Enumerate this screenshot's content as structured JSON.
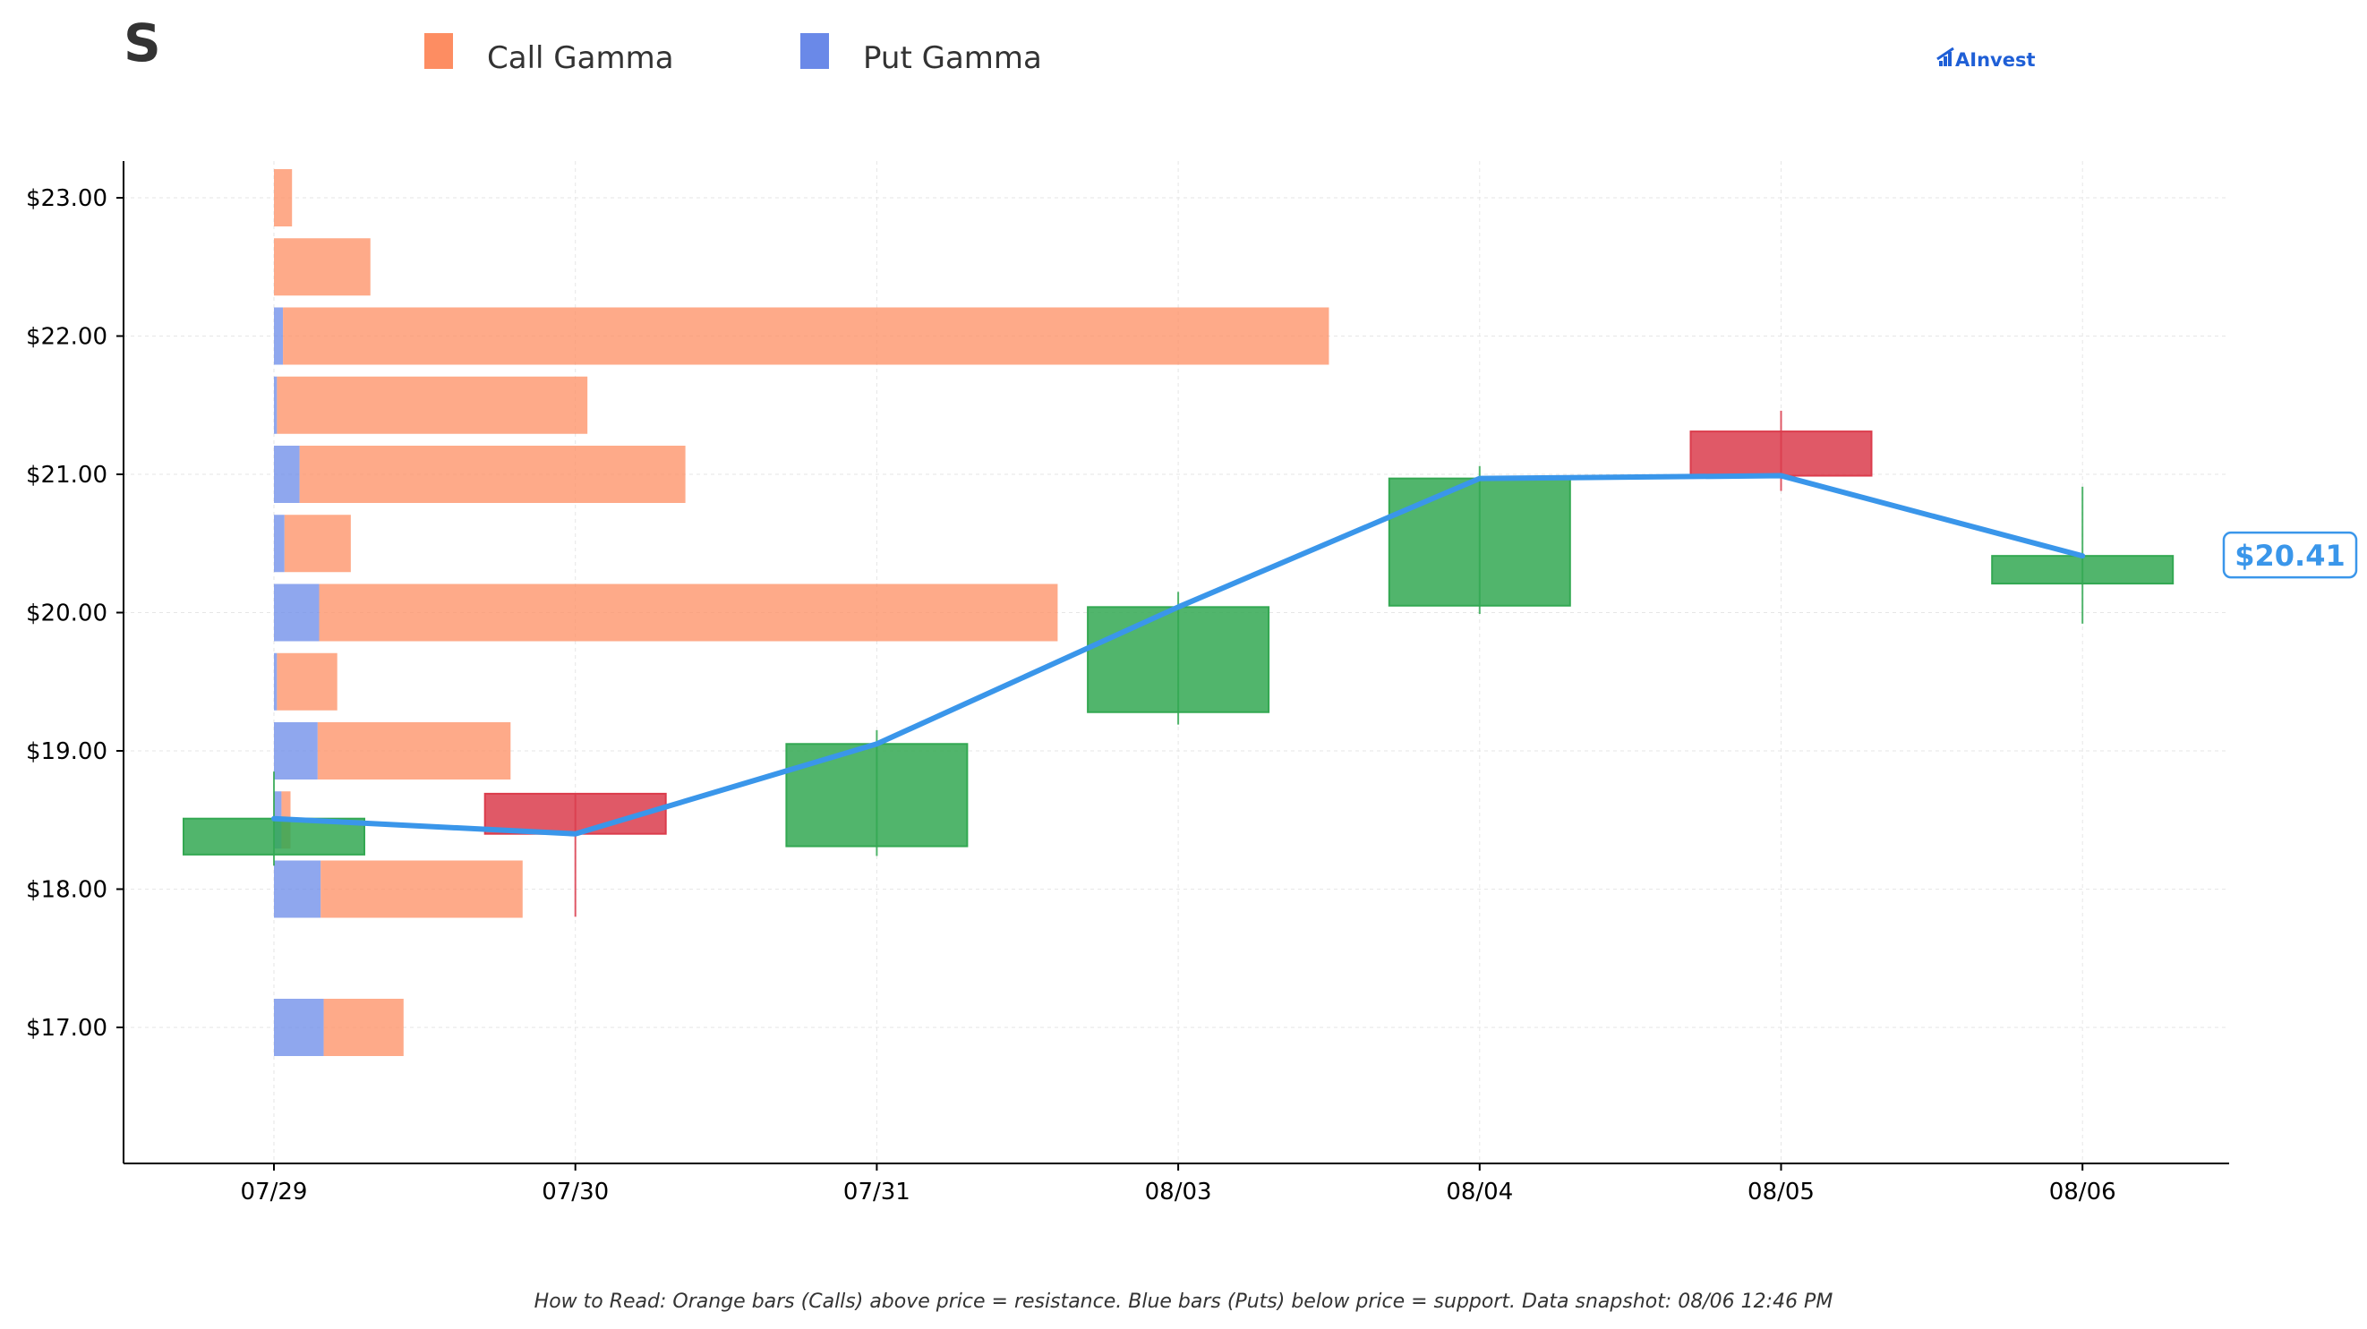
{
  "header": {
    "ticker": "S",
    "brand": "AInvest"
  },
  "footer": {
    "note": "How to Read: Orange bars (Calls) above price = resistance. Blue bars (Puts) below price = support. Data snapshot: 08/06 12:46 PM"
  },
  "chart_data": {
    "type": "candlestick+horizontal-bar+line",
    "title": "",
    "xlabel": "",
    "ylabel": "",
    "categories": [
      "07/29",
      "07/30",
      "07/31",
      "08/03",
      "08/04",
      "08/05",
      "08/06"
    ],
    "ylim": [
      16.0,
      23.25
    ],
    "y_ticks": [
      17.0,
      18.0,
      19.0,
      20.0,
      21.0,
      22.0,
      23.0
    ],
    "y_tick_labels": [
      "$17.00",
      "$18.00",
      "$19.00",
      "$20.00",
      "$21.00",
      "$22.00",
      "$23.00"
    ],
    "grid": true,
    "legend": {
      "placement": "top",
      "entries": [
        {
          "label": "Call Gamma",
          "color": "#fd8d62"
        },
        {
          "label": "Put Gamma",
          "color": "#6a89e8"
        }
      ]
    },
    "colors": {
      "call": "#fd8d62",
      "put": "#6a89e8",
      "up": "#33a852",
      "down": "#db3c4c",
      "line": "#3a96ea",
      "brand": "#1f5fd6"
    },
    "candles": [
      {
        "date": "07/29",
        "open": 18.25,
        "high": 18.85,
        "low": 18.17,
        "close": 18.51
      },
      {
        "date": "07/30",
        "open": 18.69,
        "high": 18.69,
        "low": 17.8,
        "close": 18.4
      },
      {
        "date": "07/31",
        "open": 18.31,
        "high": 19.15,
        "low": 18.24,
        "close": 19.05
      },
      {
        "date": "08/03",
        "open": 19.28,
        "high": 20.15,
        "low": 19.19,
        "close": 20.04
      },
      {
        "date": "08/04",
        "open": 20.05,
        "high": 21.06,
        "low": 19.99,
        "close": 20.97
      },
      {
        "date": "08/05",
        "open": 21.31,
        "high": 21.46,
        "low": 20.88,
        "close": 20.99
      },
      {
        "date": "08/06",
        "open": 20.21,
        "high": 20.91,
        "low": 19.92,
        "close": 20.41
      }
    ],
    "price_line": [
      18.51,
      18.4,
      19.05,
      20.04,
      20.97,
      20.99,
      20.41
    ],
    "last_price_label": "$20.41",
    "gamma_x_unit": "category index (0 = 07/29)",
    "gamma_levels": [
      {
        "strike": 17.0,
        "put": 0.165,
        "call": 0.265
      },
      {
        "strike": 18.0,
        "put": 0.155,
        "call": 0.67
      },
      {
        "strike": 18.5,
        "put": 0.025,
        "call": 0.03
      },
      {
        "strike": 19.0,
        "put": 0.145,
        "call": 0.64
      },
      {
        "strike": 19.5,
        "put": 0.01,
        "call": 0.2
      },
      {
        "strike": 20.0,
        "put": 0.15,
        "call": 2.45
      },
      {
        "strike": 20.5,
        "put": 0.035,
        "call": 0.22
      },
      {
        "strike": 21.0,
        "put": 0.085,
        "call": 1.28
      },
      {
        "strike": 21.5,
        "put": 0.01,
        "call": 1.03
      },
      {
        "strike": 22.0,
        "put": 0.03,
        "call": 3.47
      },
      {
        "strike": 22.5,
        "put": 0.0,
        "call": 0.32
      },
      {
        "strike": 23.0,
        "put": 0.0,
        "call": 0.06
      }
    ]
  }
}
